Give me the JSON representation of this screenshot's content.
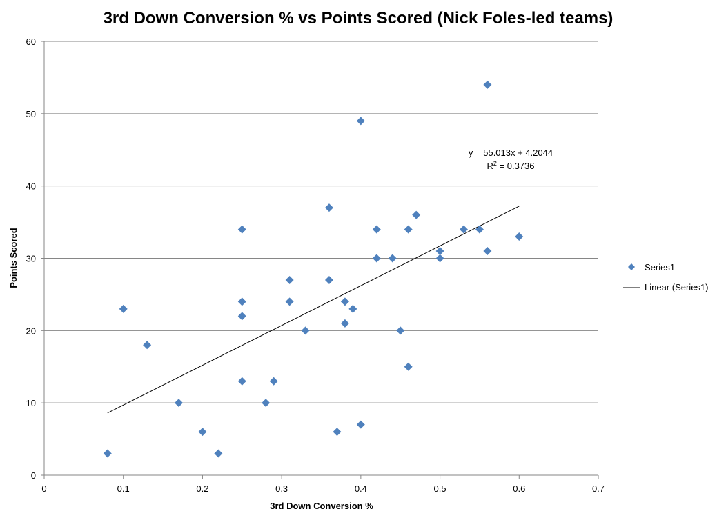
{
  "chart_data": {
    "type": "scatter",
    "title": "3rd Down Conversion % vs Points Scored (Nick Foles-led teams)",
    "xlabel": "3rd Down Conversion %",
    "ylabel": "Points Scored",
    "xlim": [
      0,
      0.7
    ],
    "ylim": [
      0,
      60
    ],
    "x_ticks": [
      "0",
      "0.1",
      "0.2",
      "0.3",
      "0.4",
      "0.5",
      "0.6",
      "0.7"
    ],
    "y_ticks": [
      "0",
      "10",
      "20",
      "30",
      "40",
      "50",
      "60"
    ],
    "grid": "horizontal",
    "legend_position": "right",
    "series": [
      {
        "name": "Series1",
        "color": "#4F81BD",
        "marker": "diamond",
        "points": [
          {
            "x": 0.08,
            "y": 3
          },
          {
            "x": 0.1,
            "y": 23
          },
          {
            "x": 0.13,
            "y": 18
          },
          {
            "x": 0.17,
            "y": 10
          },
          {
            "x": 0.2,
            "y": 6
          },
          {
            "x": 0.22,
            "y": 3
          },
          {
            "x": 0.25,
            "y": 34
          },
          {
            "x": 0.25,
            "y": 24
          },
          {
            "x": 0.25,
            "y": 22
          },
          {
            "x": 0.25,
            "y": 13
          },
          {
            "x": 0.28,
            "y": 10
          },
          {
            "x": 0.29,
            "y": 13
          },
          {
            "x": 0.31,
            "y": 27
          },
          {
            "x": 0.31,
            "y": 24
          },
          {
            "x": 0.33,
            "y": 20
          },
          {
            "x": 0.36,
            "y": 37
          },
          {
            "x": 0.36,
            "y": 27
          },
          {
            "x": 0.37,
            "y": 6
          },
          {
            "x": 0.38,
            "y": 24
          },
          {
            "x": 0.38,
            "y": 21
          },
          {
            "x": 0.39,
            "y": 23
          },
          {
            "x": 0.4,
            "y": 49
          },
          {
            "x": 0.4,
            "y": 7
          },
          {
            "x": 0.42,
            "y": 34
          },
          {
            "x": 0.42,
            "y": 30
          },
          {
            "x": 0.44,
            "y": 30
          },
          {
            "x": 0.45,
            "y": 20
          },
          {
            "x": 0.46,
            "y": 34
          },
          {
            "x": 0.46,
            "y": 15
          },
          {
            "x": 0.47,
            "y": 36
          },
          {
            "x": 0.5,
            "y": 31
          },
          {
            "x": 0.5,
            "y": 30
          },
          {
            "x": 0.53,
            "y": 34
          },
          {
            "x": 0.55,
            "y": 34
          },
          {
            "x": 0.56,
            "y": 54
          },
          {
            "x": 0.56,
            "y": 31
          },
          {
            "x": 0.6,
            "y": 33
          }
        ]
      }
    ],
    "trendline": {
      "name": "Linear (Series1)",
      "type": "linear",
      "slope": 55.013,
      "intercept": 4.2044,
      "x_range": [
        0.08,
        0.6
      ],
      "color": "#000000",
      "equation_label": "y = 55.013x + 4.2044",
      "r2_prefix": "R",
      "r2_sup": "2",
      "r2_suffix": " = 0.3736"
    }
  }
}
